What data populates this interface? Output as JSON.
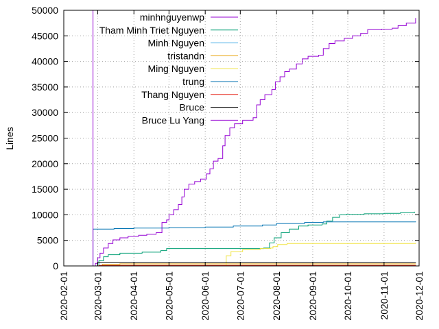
{
  "chart_data": {
    "type": "line",
    "title": "",
    "xlabel": "",
    "ylabel": "Lines",
    "xlim": [
      "2020-02-01",
      "2020-12-01"
    ],
    "ylim": [
      0,
      50000
    ],
    "grid": true,
    "legend_position": "top-left",
    "x_ticks": [
      "2020-02-01",
      "2020-03-01",
      "2020-04-01",
      "2020-05-01",
      "2020-06-01",
      "2020-07-01",
      "2020-08-01",
      "2020-09-01",
      "2020-10-01",
      "2020-11-01",
      "2020-12-01"
    ],
    "y_ticks": [
      0,
      5000,
      10000,
      15000,
      20000,
      25000,
      30000,
      35000,
      40000,
      45000,
      50000
    ],
    "series": [
      {
        "name": "minhnguyenwp",
        "color": "#9400d3",
        "points": [
          [
            "2020-02-26",
            0
          ],
          [
            "2020-02-28",
            500
          ],
          [
            "2020-03-01",
            1600
          ],
          [
            "2020-03-03",
            2500
          ],
          [
            "2020-03-06",
            3500
          ],
          [
            "2020-03-10",
            4400
          ],
          [
            "2020-03-14",
            5100
          ],
          [
            "2020-03-20",
            5500
          ],
          [
            "2020-03-27",
            5800
          ],
          [
            "2020-04-05",
            6000
          ],
          [
            "2020-04-12",
            6200
          ],
          [
            "2020-04-20",
            6500
          ],
          [
            "2020-04-25",
            8500
          ],
          [
            "2020-04-29",
            9000
          ],
          [
            "2020-05-01",
            10000
          ],
          [
            "2020-05-05",
            11000
          ],
          [
            "2020-05-09",
            12000
          ],
          [
            "2020-05-12",
            13500
          ],
          [
            "2020-05-14",
            15000
          ],
          [
            "2020-05-18",
            16000
          ],
          [
            "2020-05-23",
            16500
          ],
          [
            "2020-05-28",
            17000
          ],
          [
            "2020-06-02",
            18000
          ],
          [
            "2020-06-05",
            19000
          ],
          [
            "2020-06-08",
            20500
          ],
          [
            "2020-06-12",
            21000
          ],
          [
            "2020-06-16",
            23500
          ],
          [
            "2020-06-18",
            25500
          ],
          [
            "2020-06-22",
            27000
          ],
          [
            "2020-06-26",
            27800
          ],
          [
            "2020-07-03",
            28500
          ],
          [
            "2020-07-12",
            29000
          ],
          [
            "2020-07-15",
            31500
          ],
          [
            "2020-07-18",
            32500
          ],
          [
            "2020-07-22",
            33500
          ],
          [
            "2020-07-28",
            34500
          ],
          [
            "2020-07-31",
            36000
          ],
          [
            "2020-08-04",
            37000
          ],
          [
            "2020-08-08",
            38000
          ],
          [
            "2020-08-12",
            38500
          ],
          [
            "2020-08-18",
            39500
          ],
          [
            "2020-08-23",
            40500
          ],
          [
            "2020-08-28",
            41000
          ],
          [
            "2020-09-06",
            41200
          ],
          [
            "2020-09-10",
            42500
          ],
          [
            "2020-09-15",
            43500
          ],
          [
            "2020-09-20",
            44000
          ],
          [
            "2020-09-28",
            44500
          ],
          [
            "2020-10-05",
            45000
          ],
          [
            "2020-10-12",
            45500
          ],
          [
            "2020-10-18",
            46200
          ],
          [
            "2020-10-30",
            46300
          ],
          [
            "2020-11-08",
            46500
          ],
          [
            "2020-11-13",
            47000
          ],
          [
            "2020-11-20",
            47500
          ],
          [
            "2020-11-28",
            48500
          ]
        ]
      },
      {
        "name": "Tham Minh Triet Nguyen",
        "color": "#009e73",
        "points": [
          [
            "2020-02-26",
            0
          ],
          [
            "2020-03-02",
            1000
          ],
          [
            "2020-03-06",
            1800
          ],
          [
            "2020-03-10",
            2200
          ],
          [
            "2020-03-20",
            2500
          ],
          [
            "2020-04-08",
            2700
          ],
          [
            "2020-04-24",
            3000
          ],
          [
            "2020-04-29",
            3400
          ],
          [
            "2020-06-23",
            3400
          ],
          [
            "2020-07-21",
            3500
          ],
          [
            "2020-07-26",
            4500
          ],
          [
            "2020-07-30",
            5500
          ],
          [
            "2020-08-05",
            6500
          ],
          [
            "2020-08-12",
            7200
          ],
          [
            "2020-08-20",
            7800
          ],
          [
            "2020-08-28",
            8000
          ],
          [
            "2020-09-09",
            8200
          ],
          [
            "2020-09-13",
            8800
          ],
          [
            "2020-09-18",
            9500
          ],
          [
            "2020-09-24",
            10000
          ],
          [
            "2020-09-30",
            10100
          ],
          [
            "2020-10-15",
            10200
          ],
          [
            "2020-11-01",
            10300
          ],
          [
            "2020-11-15",
            10400
          ],
          [
            "2020-11-27",
            10600
          ]
        ]
      },
      {
        "name": "Minh Nguyen",
        "color": "#56b4e9",
        "points": [
          [
            "2020-02-26",
            0
          ],
          [
            "2020-11-28",
            50
          ]
        ]
      },
      {
        "name": "tristandn",
        "color": "#e69f00",
        "points": [
          [
            "2020-02-26",
            0
          ],
          [
            "2020-03-05",
            300
          ],
          [
            "2020-03-20",
            400
          ],
          [
            "2020-11-28",
            450
          ]
        ]
      },
      {
        "name": "Ming Nguyen",
        "color": "#f0e442",
        "points": [
          [
            "2020-02-26",
            0
          ],
          [
            "2020-06-19",
            0
          ],
          [
            "2020-06-19",
            2000
          ],
          [
            "2020-06-23",
            2800
          ],
          [
            "2020-07-03",
            3200
          ],
          [
            "2020-07-18",
            3400
          ],
          [
            "2020-07-27",
            3500
          ],
          [
            "2020-07-29",
            3800
          ],
          [
            "2020-08-02",
            4200
          ],
          [
            "2020-08-10",
            4400
          ],
          [
            "2020-11-28",
            4500
          ]
        ]
      },
      {
        "name": "trung",
        "color": "#0072b2",
        "points": [
          [
            "2020-02-26",
            0
          ],
          [
            "2020-02-26",
            7200
          ],
          [
            "2020-03-15",
            7300
          ],
          [
            "2020-04-01",
            7400
          ],
          [
            "2020-05-01",
            7500
          ],
          [
            "2020-06-01",
            7600
          ],
          [
            "2020-06-25",
            7800
          ],
          [
            "2020-07-20",
            8000
          ],
          [
            "2020-08-01",
            8300
          ],
          [
            "2020-08-25",
            8500
          ],
          [
            "2020-09-10",
            8600
          ],
          [
            "2020-11-28",
            8700
          ]
        ]
      },
      {
        "name": "Thang Nguyen",
        "color": "#e51e10",
        "points": [
          [
            "2020-02-26",
            0
          ],
          [
            "2020-03-02",
            100
          ],
          [
            "2020-11-28",
            150
          ]
        ]
      },
      {
        "name": "Bruce",
        "color": "#000000",
        "points": [
          [
            "2020-02-26",
            0
          ],
          [
            "2020-03-01",
            700
          ],
          [
            "2020-11-28",
            750
          ]
        ]
      },
      {
        "name": "Bruce Lu Yang",
        "color": "#9400d3",
        "points": [
          [
            "2020-02-26",
            0
          ],
          [
            "2020-02-26",
            50000
          ],
          [
            "2020-11-28",
            50000
          ]
        ]
      }
    ]
  }
}
